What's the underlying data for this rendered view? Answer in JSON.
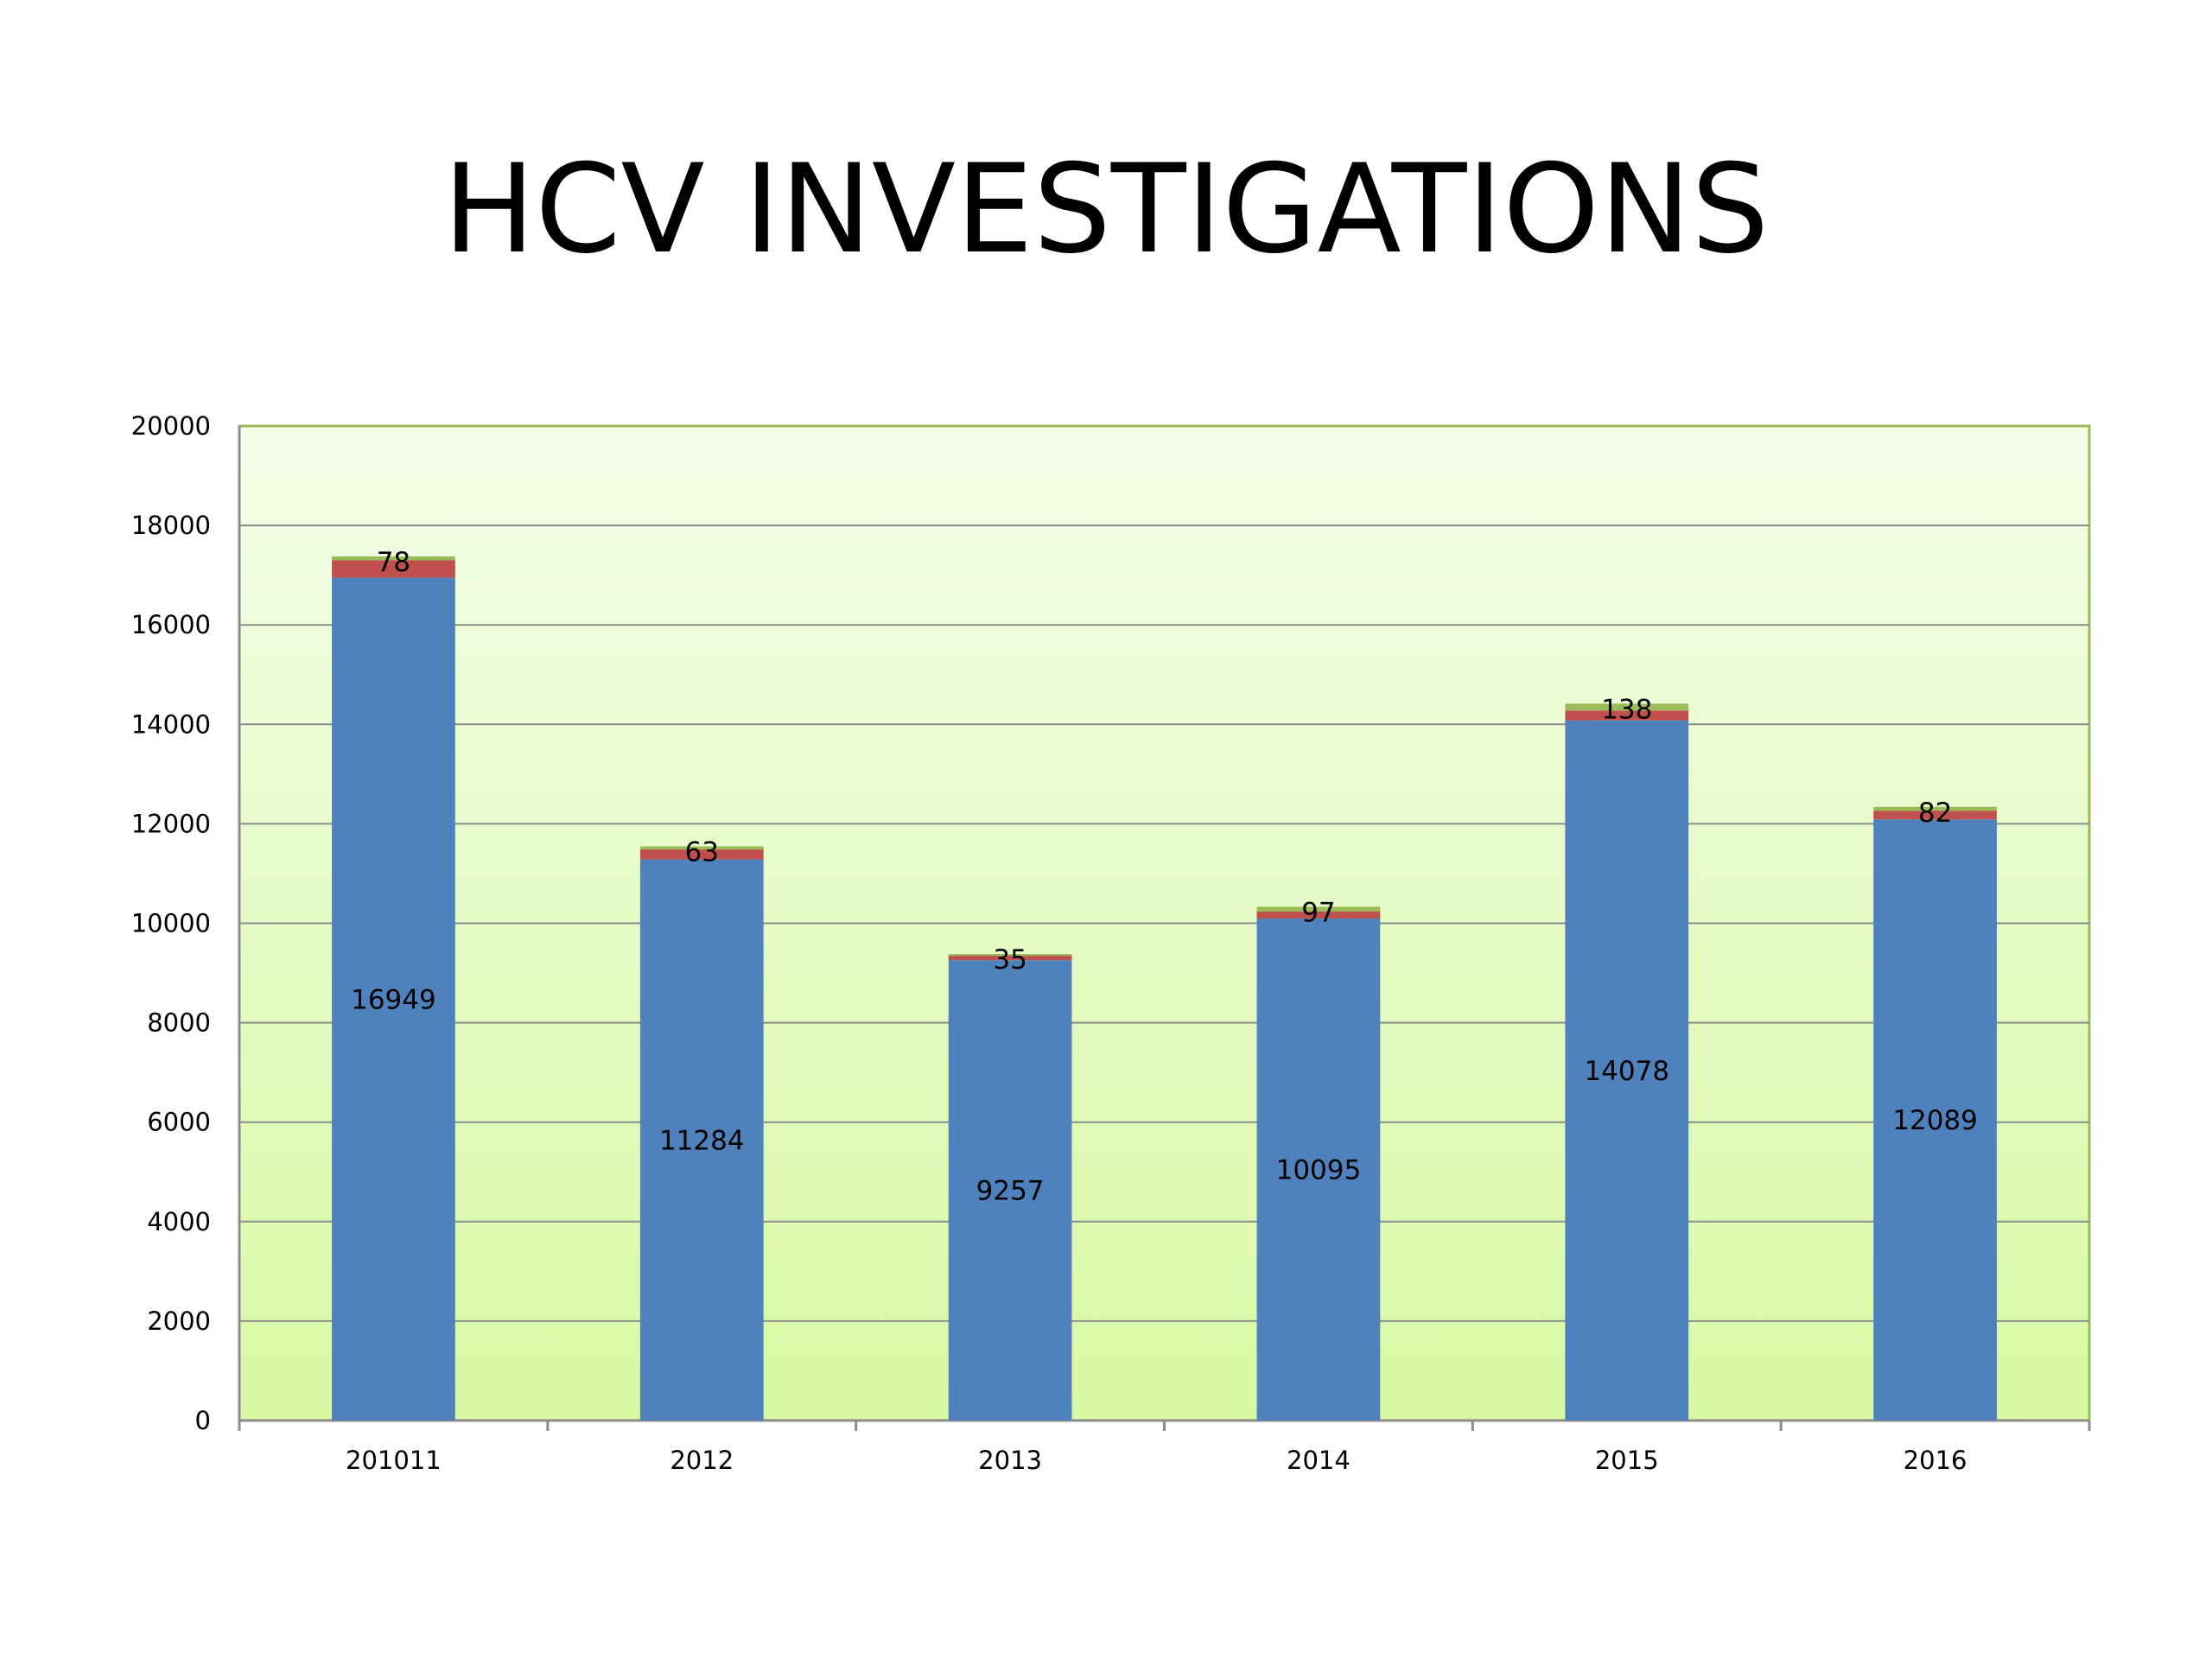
{
  "slide": {
    "title": "HCV INVESTIGATIONS"
  },
  "chart_data": {
    "type": "bar",
    "stacked": true,
    "title": "",
    "xlabel": "",
    "ylabel": "",
    "categories": [
      "201011",
      "2012",
      "2013",
      "2014",
      "2015",
      "2016"
    ],
    "ylim": [
      0,
      20000
    ],
    "yticks": [
      0,
      2000,
      4000,
      6000,
      8000,
      10000,
      12000,
      14000,
      16000,
      18000,
      20000
    ],
    "grid": true,
    "legend": "none",
    "series": [
      {
        "values": [
          16949,
          11284,
          9257,
          10095,
          14078,
          12089
        ],
        "color": "#4f81bd",
        "labels": [
          "16949",
          "11284",
          "9257",
          "10095",
          "14078",
          "12089"
        ]
      },
      {
        "values": [
          350,
          200,
          90,
          140,
          200,
          170
        ],
        "color": "#c0504d"
      },
      {
        "values": [
          78,
          63,
          35,
          97,
          138,
          82
        ],
        "color": "#9bbb59",
        "labels": [
          "78",
          "63",
          "35",
          "97",
          "138",
          "82"
        ]
      }
    ],
    "colors": {
      "plot_background_top": "#f4fde8",
      "plot_background_bottom": "#d8f9a4",
      "plot_border": "#9bbb59",
      "gridline": "#8c8c8c"
    }
  }
}
